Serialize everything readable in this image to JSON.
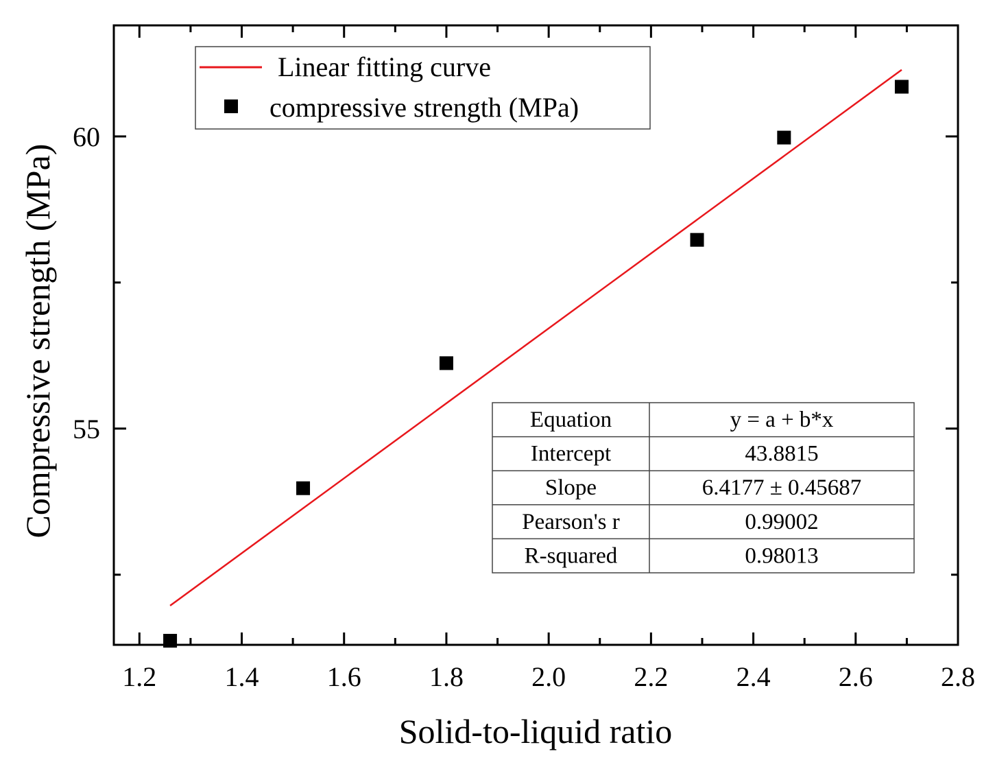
{
  "chart_data": {
    "type": "scatter",
    "xlabel": "Solid-to-liquid ratio",
    "ylabel": "Compressive strength (MPa)",
    "xlim": [
      1.15,
      2.8
    ],
    "ylim": [
      51.3,
      61.9
    ],
    "xticks": [
      "1.2",
      "1.4",
      "1.6",
      "1.8",
      "2.0",
      "2.2",
      "2.4",
      "2.6",
      "2.8"
    ],
    "xtick_values": [
      1.2,
      1.4,
      1.6,
      1.8,
      2.0,
      2.2,
      2.4,
      2.6,
      2.8
    ],
    "yticks": [
      "55",
      "60"
    ],
    "ytick_values": [
      55,
      60
    ],
    "y_minor_tick_values": [
      52.5,
      57.5
    ],
    "series": [
      {
        "name": "compressive strength (MPa)",
        "kind": "scatter",
        "marker": "square",
        "color": "#000000",
        "x": [
          1.26,
          1.52,
          1.8,
          2.29,
          2.46,
          2.69
        ],
        "y": [
          51.37,
          53.98,
          56.12,
          58.23,
          59.98,
          60.85
        ]
      },
      {
        "name": "Linear fitting curve",
        "kind": "line",
        "color": "#e8171c",
        "x": [
          1.26,
          2.69
        ],
        "y": [
          51.97,
          61.14
        ]
      }
    ],
    "legend": {
      "position": "top-left",
      "entries": [
        "Linear fitting curve",
        "compressive strength (MPa)"
      ]
    },
    "stats_table": {
      "position": "bottom-right",
      "rows": [
        [
          "Equation",
          "y = a + b*x"
        ],
        [
          "Intercept",
          "43.8815"
        ],
        [
          "Slope",
          "6.4177 ± 0.45687"
        ],
        [
          "Pearson's r",
          "0.99002"
        ],
        [
          "R-squared",
          "0.98013"
        ]
      ]
    }
  }
}
